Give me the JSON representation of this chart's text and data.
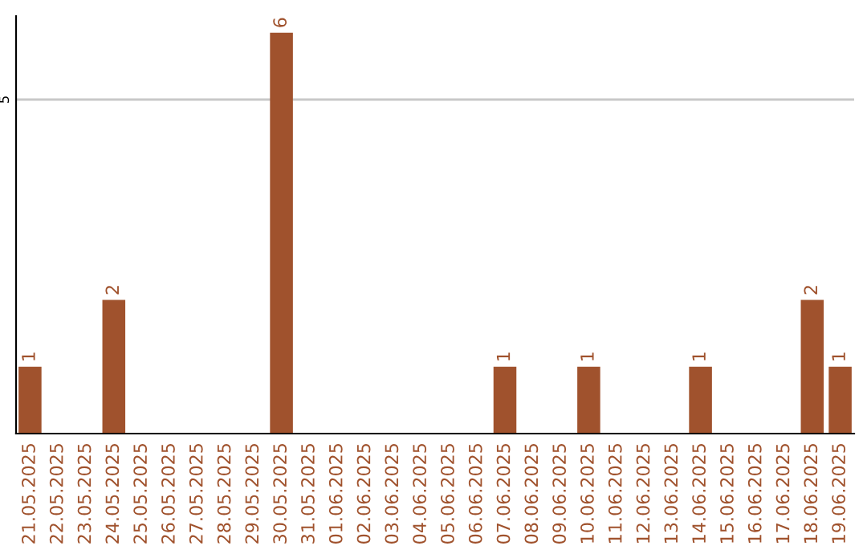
{
  "chart_data": {
    "type": "bar",
    "categories": [
      "21.05.2025",
      "22.05.2025",
      "23.05.2025",
      "24.05.2025",
      "25.05.2025",
      "26.05.2025",
      "27.05.2025",
      "28.05.2025",
      "29.05.2025",
      "30.05.2025",
      "31.05.2025",
      "01.06.2025",
      "02.06.2025",
      "03.06.2025",
      "04.06.2025",
      "05.06.2025",
      "06.06.2025",
      "07.06.2025",
      "08.06.2025",
      "09.06.2025",
      "10.06.2025",
      "11.06.2025",
      "12.06.2025",
      "13.06.2025",
      "14.06.2025",
      "15.06.2025",
      "16.06.2025",
      "17.06.2025",
      "18.06.2025",
      "19.06.2025"
    ],
    "values": [
      1,
      0,
      0,
      2,
      0,
      0,
      0,
      0,
      0,
      6,
      0,
      0,
      0,
      0,
      0,
      0,
      0,
      1,
      0,
      0,
      1,
      0,
      0,
      0,
      1,
      0,
      0,
      0,
      2,
      1
    ],
    "value_labels": [
      "1",
      null,
      null,
      "2",
      null,
      null,
      null,
      null,
      null,
      "6",
      null,
      null,
      null,
      null,
      null,
      null,
      null,
      "1",
      null,
      null,
      "1",
      null,
      null,
      null,
      "1",
      null,
      null,
      null,
      "2",
      "1"
    ],
    "color": "#a0522d",
    "ylim": [
      0,
      6.25
    ],
    "yticks": [
      5
    ],
    "grid": "y",
    "legend": false
  }
}
